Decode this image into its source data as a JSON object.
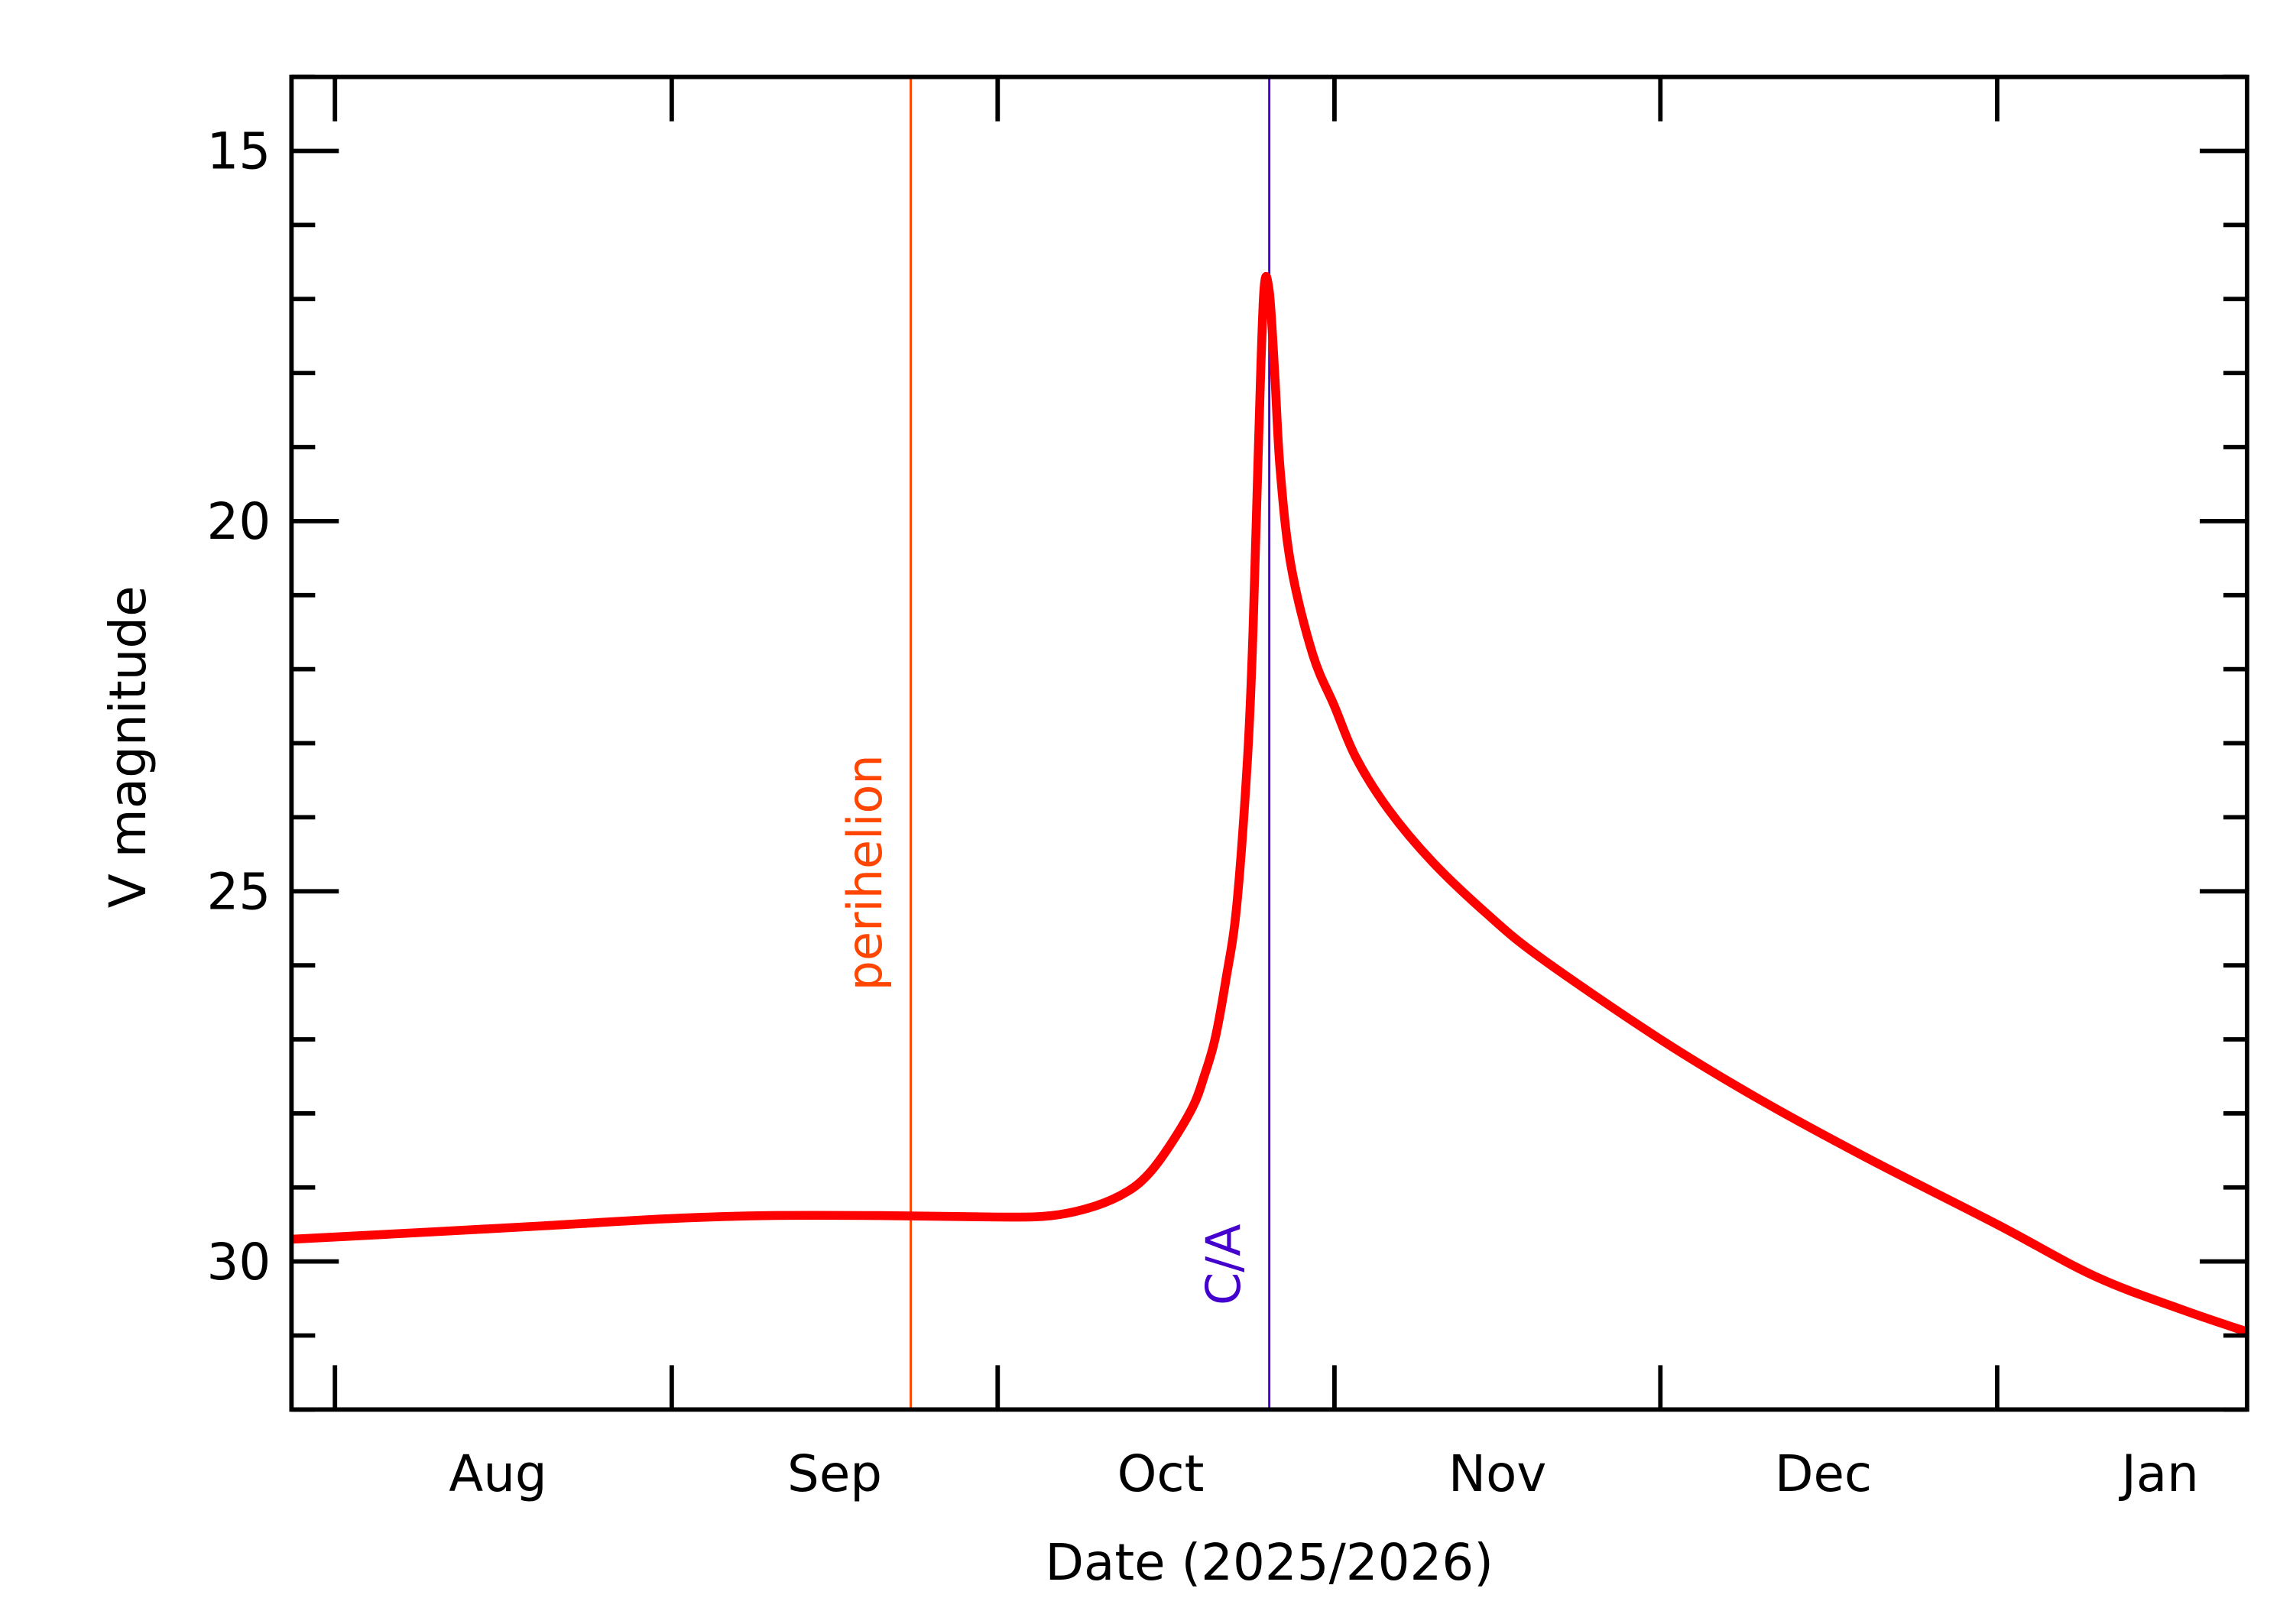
{
  "chart_data": {
    "type": "line",
    "xlabel": "Date (2025/2026)",
    "ylabel": "V magnitude",
    "xlim": [
      "2025-07-28",
      "2026-01-24"
    ],
    "ylim": [
      14,
      32
    ],
    "y_inverted": true,
    "yticks": [
      15,
      20,
      25,
      30
    ],
    "yminor_step": 1,
    "month_ticks": [
      "2025-08-01",
      "2025-09-01",
      "2025-10-01",
      "2025-11-01",
      "2025-12-01",
      "2026-01-01"
    ],
    "month_labels": [
      {
        "label": "Aug",
        "date": "2025-08-16"
      },
      {
        "label": "Sep",
        "date": "2025-09-16"
      },
      {
        "label": "Oct",
        "date": "2025-10-16"
      },
      {
        "label": "Nov",
        "date": "2025-11-16"
      },
      {
        "label": "Dec",
        "date": "2025-12-16"
      },
      {
        "label": "Jan",
        "date": "2026-01-16"
      }
    ],
    "grid": false,
    "series": [
      {
        "color": "#ff0000",
        "points": [
          [
            "2025-07-28",
            29.7
          ],
          [
            "2025-08-10",
            29.6
          ],
          [
            "2025-08-20",
            29.52
          ],
          [
            "2025-09-01",
            29.42
          ],
          [
            "2025-09-10",
            29.38
          ],
          [
            "2025-09-20",
            29.38
          ],
          [
            "2025-10-01",
            29.4
          ],
          [
            "2025-10-06",
            29.38
          ],
          [
            "2025-10-10",
            29.25
          ],
          [
            "2025-10-13",
            29.05
          ],
          [
            "2025-10-15",
            28.8
          ],
          [
            "2025-10-17",
            28.4
          ],
          [
            "2025-10-19",
            27.9
          ],
          [
            "2025-10-20",
            27.5
          ],
          [
            "2025-10-21",
            27.0
          ],
          [
            "2025-10-22",
            26.2
          ],
          [
            "2025-10-23",
            25.2
          ],
          [
            "2025-10-24",
            23.2
          ],
          [
            "2025-10-24.5",
            21.5
          ],
          [
            "2025-10-25",
            19.0
          ],
          [
            "2025-10-25.5",
            16.9
          ],
          [
            "2025-10-26",
            16.9
          ],
          [
            "2025-10-26.5",
            18.0
          ],
          [
            "2025-10-27",
            19.3
          ],
          [
            "2025-10-28",
            20.6
          ],
          [
            "2025-10-30",
            21.8
          ],
          [
            "2025-11-01",
            22.5
          ],
          [
            "2025-11-03",
            23.2
          ],
          [
            "2025-11-06",
            23.9
          ],
          [
            "2025-11-10",
            24.6
          ],
          [
            "2025-11-15",
            25.3
          ],
          [
            "2025-11-20",
            25.9
          ],
          [
            "2025-12-01",
            27.0
          ],
          [
            "2025-12-10",
            27.8
          ],
          [
            "2025-12-20",
            28.6
          ],
          [
            "2026-01-01",
            29.5
          ],
          [
            "2026-01-10",
            30.2
          ],
          [
            "2026-01-18",
            30.65
          ],
          [
            "2026-01-24",
            30.95
          ]
        ]
      }
    ],
    "annotations": [
      {
        "label": "perihelion",
        "date": "2025-09-23",
        "color": "#ff4500"
      },
      {
        "label": "C/A",
        "date": "2025-10-26",
        "color": "#4400cc"
      }
    ]
  }
}
